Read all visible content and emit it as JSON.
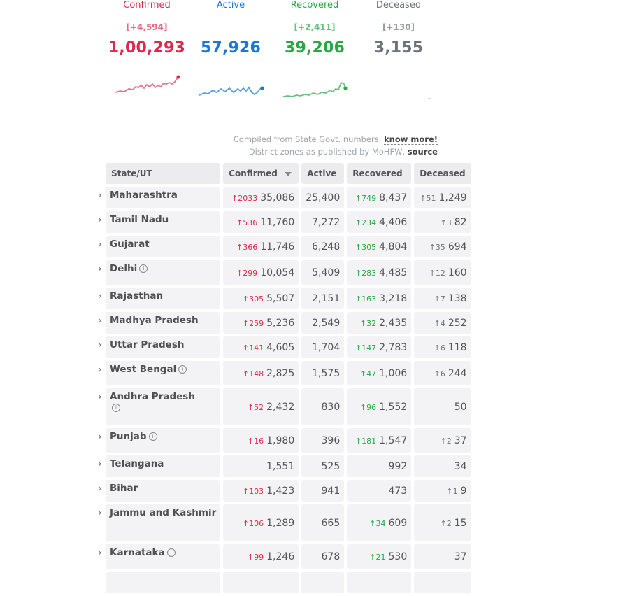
{
  "stats": [
    {
      "label": "Confirmed",
      "delta": "[+4,594]",
      "value": "1,00,293"
    },
    {
      "label": "Active",
      "delta": "",
      "value": "57,926"
    },
    {
      "label": "Recovered",
      "delta": "[+2,411]",
      "value": "39,206"
    },
    {
      "label": "Deceased",
      "delta": "[+130]",
      "value": "3,155"
    }
  ],
  "colors": {
    "confirmed": "#e0284d",
    "active": "#1b78d8",
    "recovered": "#28a745",
    "deceased": "#6c757d"
  },
  "info": {
    "line1_prefix": "Compiled from State Govt. numbers,",
    "line1_link": "know more!",
    "line2_prefix": "District zones as published by MoHFW,",
    "line2_link": "source"
  },
  "table": {
    "headers": {
      "state": "State/UT",
      "confirmed": "Confirmed",
      "active": "Active",
      "recovered": "Recovered",
      "deceased": "Deceased"
    },
    "rows": [
      {
        "state": "Maharashtra",
        "dc": "↑2033",
        "confirmed": "35,086",
        "active": "25,400",
        "dr": "↑749",
        "recovered": "8,437",
        "dd": "↑51",
        "deceased": "1,249"
      },
      {
        "state": "Tamil Nadu",
        "dc": "↑536",
        "confirmed": "11,760",
        "active": "7,272",
        "dr": "↑234",
        "recovered": "4,406",
        "dd": "↑3",
        "deceased": "82"
      },
      {
        "state": "Gujarat",
        "dc": "↑366",
        "confirmed": "11,746",
        "active": "6,248",
        "dr": "↑305",
        "recovered": "4,804",
        "dd": "↑35",
        "deceased": "694"
      },
      {
        "state": "Delhi",
        "dc": "↑299",
        "confirmed": "10,054",
        "active": "5,409",
        "dr": "↑283",
        "recovered": "4,485",
        "dd": "↑12",
        "deceased": "160"
      },
      {
        "state": "Rajasthan",
        "dc": "↑305",
        "confirmed": "5,507",
        "active": "2,151",
        "dr": "↑163",
        "recovered": "3,218",
        "dd": "↑7",
        "deceased": "138"
      },
      {
        "state": "Madhya Pradesh",
        "dc": "↑259",
        "confirmed": "5,236",
        "active": "2,549",
        "dr": "↑32",
        "recovered": "2,435",
        "dd": "↑4",
        "deceased": "252"
      },
      {
        "state": "Uttar Pradesh",
        "dc": "↑141",
        "confirmed": "4,605",
        "active": "1,704",
        "dr": "↑147",
        "recovered": "2,783",
        "dd": "↑6",
        "deceased": "118"
      },
      {
        "state": "West Bengal",
        "dc": "↑148",
        "confirmed": "2,825",
        "active": "1,575",
        "dr": "↑47",
        "recovered": "1,006",
        "dd": "↑6",
        "deceased": "244"
      },
      {
        "state": "Andhra Pradesh",
        "dc": "↑52",
        "confirmed": "2,432",
        "active": "830",
        "dr": "↑96",
        "recovered": "1,552",
        "dd": "",
        "deceased": "50"
      },
      {
        "state": "Punjab",
        "dc": "↑16",
        "confirmed": "1,980",
        "active": "396",
        "dr": "↑181",
        "recovered": "1,547",
        "dd": "↑2",
        "deceased": "37"
      },
      {
        "state": "Telangana",
        "dc": "",
        "confirmed": "1,551",
        "active": "525",
        "dr": "",
        "recovered": "992",
        "dd": "",
        "deceased": "34"
      },
      {
        "state": "Bihar",
        "dc": "↑103",
        "confirmed": "1,423",
        "active": "941",
        "dr": "",
        "recovered": "473",
        "dd": "↑1",
        "deceased": "9"
      },
      {
        "state": "Jammu and Kashmir",
        "dc": "↑106",
        "confirmed": "1,289",
        "active": "665",
        "dr": "↑34",
        "recovered": "609",
        "dd": "↑2",
        "deceased": "15"
      },
      {
        "state": "Karnataka",
        "dc": "↑99",
        "confirmed": "1,246",
        "active": "678",
        "dr": "↑21",
        "recovered": "530",
        "dd": "",
        "deceased": "37"
      }
    ]
  }
}
